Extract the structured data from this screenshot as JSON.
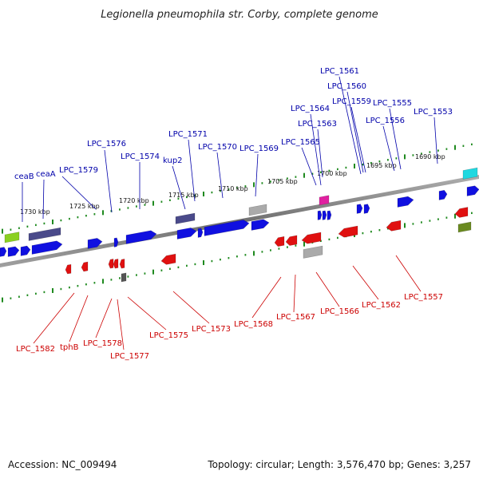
{
  "title": "Legionella pneumophila str. Corby, complete genome",
  "footer": {
    "accession": "Accession: NC_009494",
    "topology": "Topology: circular; Length: 3,576,470 bp; Genes: 3,257"
  },
  "colors": {
    "forward": "#1010e0",
    "reverse": "#e01010",
    "top_label": "#0000aa",
    "bottom_label": "#cc0000",
    "tick": "#1f8a1f",
    "backbone": "#808080",
    "gene_dark": "#4a4a8a",
    "gene_gray": "#aaaaaa",
    "gene_pink": "#e020a0",
    "gene_cyan": "#20d8e0",
    "gene_olive": "#6a8a20",
    "gene_lime": "#8ad020"
  },
  "scale_labels": [
    "1730 kbp",
    "1725 kbp",
    "1720 kbp",
    "1715 kbp",
    "1710 kbp",
    "1705 kbp",
    "1700 kbp",
    "1695 kbp",
    "1690 kbp"
  ],
  "top_genes": [
    "ceaB",
    "ceaA",
    "LPC_1579",
    "LPC_1576",
    "LPC_1574",
    "kup2",
    "LPC_1571",
    "LPC_1570",
    "LPC_1569",
    "LPC_1565",
    "LPC_1564",
    "LPC_1563",
    "LPC_1561",
    "LPC_1560",
    "LPC_1559",
    "LPC_1556",
    "LPC_1555",
    "LPC_1553"
  ],
  "bottom_genes": [
    "LPC_1582",
    "tphB",
    "LPC_1578",
    "LPC_1577",
    "LPC_1575",
    "LPC_1573",
    "LPC_1568",
    "LPC_1567",
    "LPC_1566",
    "LPC_1562",
    "LPC_1557"
  ]
}
